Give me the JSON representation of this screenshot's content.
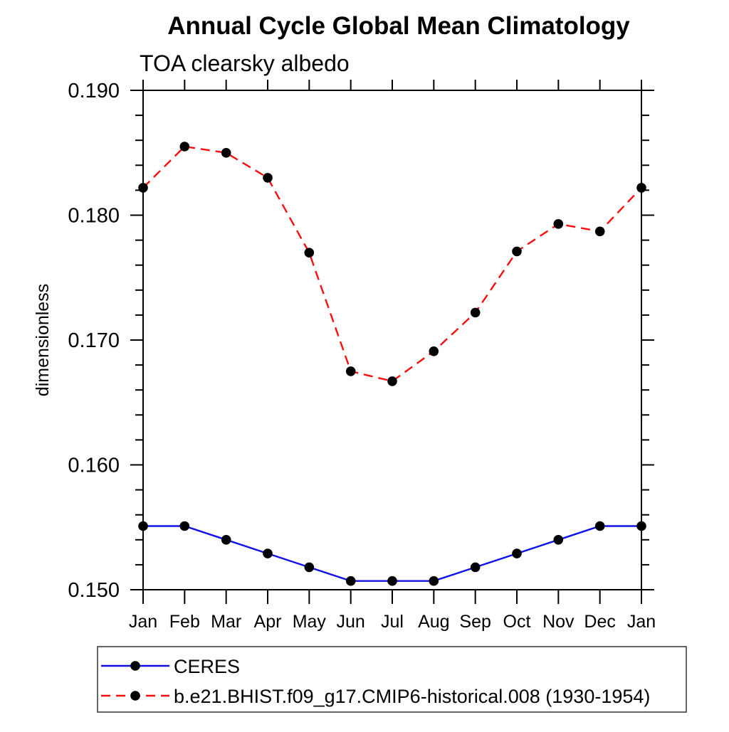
{
  "chart_data": {
    "type": "line",
    "title": "Annual Cycle Global Mean Climatology",
    "subtitle": "TOA clearsky albedo",
    "xlabel": "",
    "ylabel": "dimensionless",
    "categories": [
      "Jan",
      "Feb",
      "Mar",
      "Apr",
      "May",
      "Jun",
      "Jul",
      "Aug",
      "Sep",
      "Oct",
      "Nov",
      "Dec",
      "Jan"
    ],
    "ylim": [
      0.15,
      0.19
    ],
    "ytick_major_step": 0.01,
    "ytick_minor_step": 0.002,
    "ytick_labels": [
      "0.190",
      "0.180",
      "0.170",
      "0.160",
      "0.150"
    ],
    "grid": false,
    "legend": {
      "position": "bottom-left",
      "border": true,
      "entries": [
        "CERES",
        "b.e21.BHIST.f09_g17.CMIP6-historical.008 (1930-1954)"
      ]
    },
    "series": [
      {
        "name": "CERES",
        "color": "#1010e8",
        "line_style": "solid",
        "marker": "circle",
        "marker_color": "#000000",
        "values": [
          0.1551,
          0.1551,
          0.154,
          0.1529,
          0.1518,
          0.1507,
          0.1507,
          0.1507,
          0.1518,
          0.1529,
          0.154,
          0.1551,
          0.1551
        ]
      },
      {
        "name": "b.e21.BHIST.f09_g17.CMIP6-historical.008 (1930-1954)",
        "color": "#fb0d0d",
        "line_style": "dashed",
        "marker": "circle",
        "marker_color": "#000000",
        "values": [
          0.1822,
          0.1855,
          0.185,
          0.183,
          0.177,
          0.1675,
          0.1667,
          0.1691,
          0.1722,
          0.1771,
          0.1793,
          0.1787,
          0.1822
        ]
      }
    ]
  }
}
